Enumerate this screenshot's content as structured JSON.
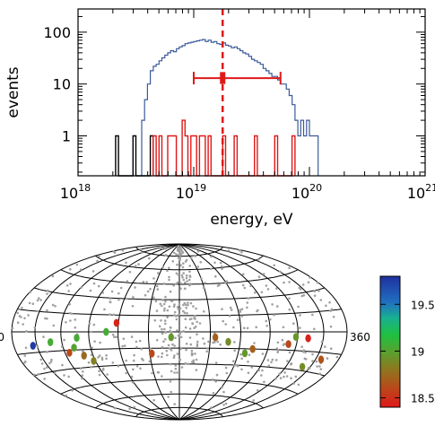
{
  "chart_data": [
    {
      "type": "histogram",
      "xlabel": "energy, eV",
      "ylabel": "events",
      "x_scale": "log",
      "y_scale": "log",
      "xlim": [
        1e+18,
        1e+21
      ],
      "ylim": [
        0.17,
        280
      ],
      "x_ticks": [
        {
          "base": "10",
          "exp": "18",
          "value": 18
        },
        {
          "base": "10",
          "exp": "19",
          "value": 19
        },
        {
          "base": "10",
          "exp": "20",
          "value": 20
        },
        {
          "base": "10",
          "exp": "21",
          "value": 21
        }
      ],
      "y_ticks": [
        {
          "label": "1",
          "value": 1
        },
        {
          "label": "10",
          "value": 10
        },
        {
          "label": "100",
          "value": 100
        }
      ],
      "series": [
        {
          "color": "#3a5a9a",
          "bin_start_log10E": 18.55,
          "bin_width_log10E": 0.025,
          "values": [
            2,
            5,
            10,
            18,
            22,
            24,
            28,
            32,
            36,
            40,
            44,
            42,
            48,
            52,
            55,
            60,
            62,
            64,
            66,
            68,
            70,
            72,
            66,
            70,
            64,
            66,
            60,
            58,
            62,
            56,
            54,
            50,
            52,
            48,
            44,
            40,
            38,
            34,
            30,
            28,
            26,
            24,
            20,
            18,
            16,
            14,
            14,
            12,
            10,
            10,
            8,
            6,
            4,
            2,
            1,
            2,
            1,
            2,
            1,
            1,
            1
          ]
        },
        {
          "color": "#000000",
          "bin_start_log10E": 18.325,
          "bin_width_log10E": 0.025,
          "values": [
            1,
            0,
            0,
            0,
            0,
            0,
            1,
            0,
            0,
            0,
            0,
            0,
            1
          ]
        },
        {
          "color": "#e01818",
          "bin_start_log10E": 18.65,
          "bin_width_log10E": 0.025,
          "values": [
            1,
            0,
            1,
            0,
            0,
            1,
            1,
            1,
            0,
            0,
            2,
            1,
            0,
            1,
            1,
            0,
            1,
            1,
            0,
            1,
            0,
            0,
            0,
            0,
            1,
            0,
            0,
            0,
            1,
            0,
            0,
            0,
            0,
            0,
            0,
            1,
            0,
            0,
            0,
            0,
            0,
            0,
            1,
            0,
            0,
            0,
            0,
            0,
            1
          ]
        }
      ],
      "threshold": {
        "log10E": 19.25,
        "style": "dashed",
        "color": "#e01818"
      },
      "marker": {
        "log10E": 19.25,
        "y": 13,
        "xerr_low_log10E": 19.0,
        "xerr_high_log10E": 19.75,
        "yerr": [
          10,
          17
        ],
        "color": "#e01818"
      }
    },
    {
      "type": "scatter",
      "projection": "hammer-aitoff",
      "left_label": "0",
      "right_label": "360",
      "background_points": {
        "color": "#a0a0a0",
        "count": 550
      },
      "events": [
        {
          "lon": 25,
          "lat": -10,
          "log10E": 19.75
        },
        {
          "lon": 47,
          "lat": -8,
          "log10E": 19.05
        },
        {
          "lon": 65,
          "lat": -17,
          "log10E": 18.6
        },
        {
          "lon": 72,
          "lat": -13,
          "log10E": 19.0
        },
        {
          "lon": 80,
          "lat": -20,
          "log10E": 18.75
        },
        {
          "lon": 77,
          "lat": -5,
          "log10E": 19.05
        },
        {
          "lon": 88,
          "lat": -25,
          "log10E": 18.85
        },
        {
          "lon": 118,
          "lat": 8,
          "log10E": 18.45
        },
        {
          "lon": 108,
          "lat": 0,
          "log10E": 19.05
        },
        {
          "lon": 152,
          "lat": -20,
          "log10E": 18.6
        },
        {
          "lon": 172,
          "lat": -5,
          "log10E": 18.95
        },
        {
          "lon": 215,
          "lat": -5,
          "log10E": 18.7
        },
        {
          "lon": 228,
          "lat": -9,
          "log10E": 18.9
        },
        {
          "lon": 247,
          "lat": -19,
          "log10E": 18.95
        },
        {
          "lon": 254,
          "lat": -15,
          "log10E": 18.7
        },
        {
          "lon": 298,
          "lat": -4,
          "log10E": 18.95
        },
        {
          "lon": 291,
          "lat": -10,
          "log10E": 18.6
        },
        {
          "lon": 312,
          "lat": -5,
          "log10E": 18.45
        },
        {
          "lon": 320,
          "lat": -27,
          "log10E": 18.9
        },
        {
          "lon": 337,
          "lat": -20,
          "log10E": 18.65
        }
      ],
      "colorbar": {
        "ticks": [
          {
            "label": "19.5",
            "value": 19.5
          },
          {
            "label": "19",
            "value": 19.0
          },
          {
            "label": "18.5",
            "value": 18.5
          }
        ],
        "range": [
          18.4,
          19.8
        ]
      }
    }
  ]
}
